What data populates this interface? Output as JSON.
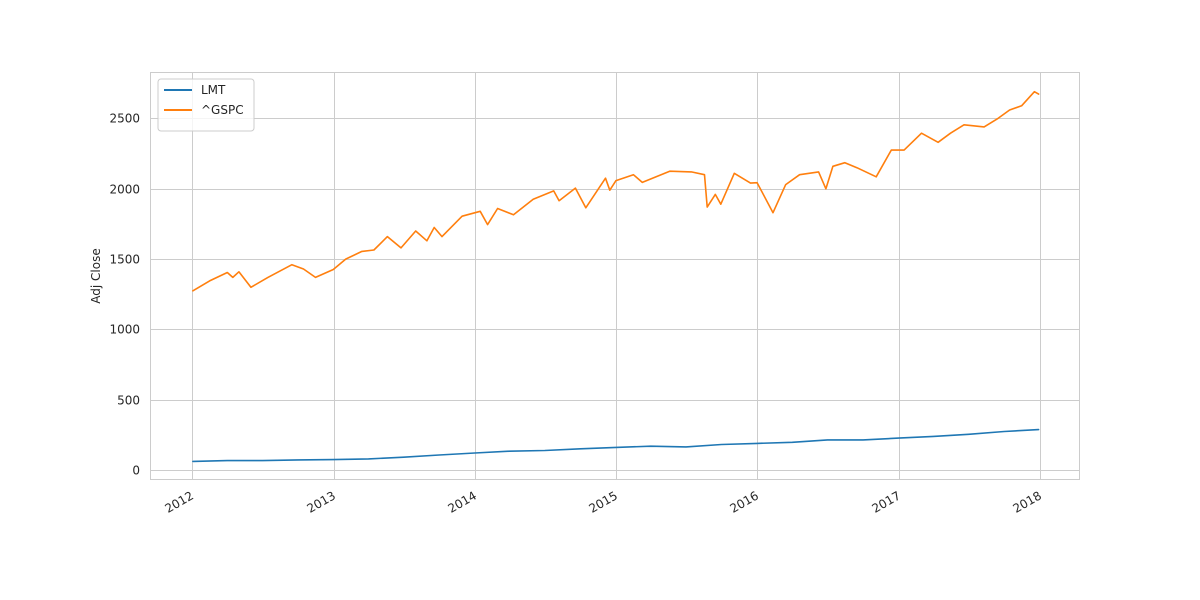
{
  "chart_data": {
    "type": "line",
    "title": "",
    "xlabel": "",
    "ylabel": "Adj Close",
    "xlim": [
      "2011-09-14",
      "2018-04-15"
    ],
    "ylim": [
      -70,
      2830
    ],
    "xticks": [
      "2012",
      "2013",
      "2014",
      "2015",
      "2016",
      "2017",
      "2018"
    ],
    "yticks": [
      0,
      500,
      1000,
      1500,
      2000,
      2500
    ],
    "grid": true,
    "legend": {
      "placement": "top-left"
    },
    "series": [
      {
        "name": "LMT",
        "color": "#1f77b4",
        "x": [
          "2012-01-03",
          "2012-04-01",
          "2012-07-01",
          "2012-10-01",
          "2013-01-01",
          "2013-04-01",
          "2013-07-01",
          "2013-10-01",
          "2014-01-01",
          "2014-04-01",
          "2014-07-01",
          "2014-10-01",
          "2015-01-01",
          "2015-04-01",
          "2015-07-01",
          "2015-10-01",
          "2016-01-01",
          "2016-04-01",
          "2016-07-01",
          "2016-10-01",
          "2017-01-01",
          "2017-04-01",
          "2017-07-01",
          "2017-10-01",
          "2017-12-29"
        ],
        "y": [
          62,
          68,
          68,
          73,
          75,
          80,
          92,
          108,
          122,
          135,
          140,
          152,
          162,
          170,
          165,
          182,
          190,
          198,
          215,
          215,
          228,
          240,
          255,
          275,
          288
        ]
      },
      {
        "name": "^GSPC",
        "color": "#ff7f0e",
        "x": [
          "2012-01-03",
          "2012-02-15",
          "2012-04-01",
          "2012-04-15",
          "2012-05-01",
          "2012-06-01",
          "2012-07-15",
          "2012-09-15",
          "2012-10-15",
          "2012-11-15",
          "2012-12-31",
          "2013-02-01",
          "2013-03-15",
          "2013-04-15",
          "2013-05-20",
          "2013-06-24",
          "2013-08-01",
          "2013-08-30",
          "2013-09-18",
          "2013-10-08",
          "2013-11-29",
          "2014-01-15",
          "2014-02-03",
          "2014-03-01",
          "2014-04-11",
          "2014-06-01",
          "2014-07-24",
          "2014-08-07",
          "2014-09-18",
          "2014-10-15",
          "2014-12-05",
          "2014-12-16",
          "2015-01-01",
          "2015-02-15",
          "2015-03-10",
          "2015-05-20",
          "2015-07-15",
          "2015-08-18",
          "2015-08-25",
          "2015-09-15",
          "2015-09-29",
          "2015-11-03",
          "2015-12-15",
          "2016-01-01",
          "2016-02-11",
          "2016-03-15",
          "2016-04-20",
          "2016-06-08",
          "2016-06-27",
          "2016-07-15",
          "2016-08-15",
          "2016-09-15",
          "2016-11-04",
          "2016-12-13",
          "2017-01-15",
          "2017-03-01",
          "2017-04-13",
          "2017-05-15",
          "2017-06-19",
          "2017-08-10",
          "2017-09-15",
          "2017-10-15",
          "2017-11-15",
          "2017-12-18",
          "2017-12-29"
        ],
        "y": [
          1275,
          1345,
          1405,
          1370,
          1410,
          1300,
          1370,
          1460,
          1430,
          1370,
          1426,
          1500,
          1555,
          1565,
          1660,
          1580,
          1700,
          1630,
          1725,
          1660,
          1805,
          1840,
          1745,
          1860,
          1815,
          1925,
          1985,
          1915,
          2005,
          1865,
          2075,
          1990,
          2058,
          2100,
          2045,
          2125,
          2120,
          2100,
          1870,
          1960,
          1890,
          2110,
          2040,
          2043,
          1830,
          2030,
          2100,
          2120,
          2000,
          2160,
          2185,
          2150,
          2085,
          2275,
          2275,
          2395,
          2330,
          2395,
          2455,
          2440,
          2500,
          2560,
          2590,
          2690,
          2673
        ]
      }
    ]
  }
}
